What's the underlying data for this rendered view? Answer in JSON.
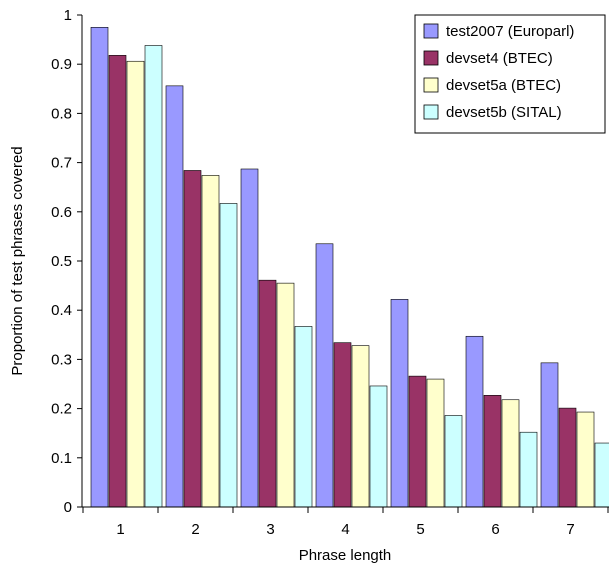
{
  "chart_data": {
    "type": "bar",
    "categories": [
      "1",
      "2",
      "3",
      "4",
      "5",
      "6",
      "7"
    ],
    "series": [
      {
        "name": "test2007 (Europarl)",
        "color": "#9999ff",
        "values": [
          0.975,
          0.856,
          0.687,
          0.535,
          0.422,
          0.347,
          0.293
        ]
      },
      {
        "name": "devset4 (BTEC)",
        "color": "#993366",
        "values": [
          0.918,
          0.684,
          0.461,
          0.334,
          0.266,
          0.227,
          0.201
        ]
      },
      {
        "name": "devset5a (BTEC)",
        "color": "#ffffcc",
        "values": [
          0.906,
          0.674,
          0.455,
          0.328,
          0.26,
          0.218,
          0.193
        ]
      },
      {
        "name": "devset5b (SITAL)",
        "color": "#ccffff",
        "values": [
          0.938,
          0.617,
          0.367,
          0.246,
          0.186,
          0.152,
          0.13
        ]
      }
    ],
    "xlabel": "Phrase length",
    "ylabel": "Proportion of test phrases covered",
    "ylim": [
      0,
      1
    ],
    "yticks": [
      "0",
      "0.1",
      "0.2",
      "0.3",
      "0.4",
      "0.5",
      "0.6",
      "0.7",
      "0.8",
      "0.9",
      "1"
    ],
    "grid": false,
    "legend_position": "top-right"
  }
}
